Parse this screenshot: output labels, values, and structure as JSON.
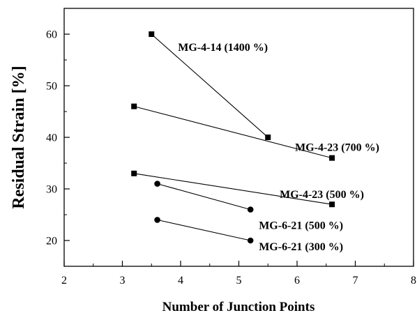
{
  "chart_data": {
    "type": "scatter",
    "title": "",
    "xlabel": "Number of Junction Points",
    "ylabel": "Residual Strain [%]",
    "xlim": [
      2,
      8
    ],
    "ylim": [
      15,
      65
    ],
    "x_ticks": [
      2,
      3,
      4,
      5,
      6,
      7,
      8
    ],
    "y_ticks": [
      20,
      30,
      40,
      50,
      60
    ],
    "x_tick_labels": [
      "2",
      "3",
      "4",
      "5",
      "6",
      "7",
      "8"
    ],
    "y_tick_labels": [
      "20",
      "30",
      "40",
      "50",
      "60"
    ],
    "grid": false,
    "series": [
      {
        "name": "MG-4-14 (1400 %)",
        "marker": "square",
        "x": [
          3.5,
          5.5
        ],
        "y": [
          60,
          40
        ]
      },
      {
        "name": "MG-4-23 (700 %)",
        "marker": "square",
        "x": [
          3.2,
          6.6
        ],
        "y": [
          46,
          36
        ]
      },
      {
        "name": "MG-4-23 (500 %)",
        "marker": "square",
        "x": [
          3.2,
          6.6
        ],
        "y": [
          33,
          27
        ]
      },
      {
        "name": "MG-6-21 (500 %)",
        "marker": "circle",
        "x": [
          3.6,
          5.2
        ],
        "y": [
          31,
          26
        ]
      },
      {
        "name": "MG-6-21 (300 %)",
        "marker": "circle",
        "x": [
          3.6,
          5.2
        ],
        "y": [
          24,
          20
        ]
      }
    ]
  }
}
